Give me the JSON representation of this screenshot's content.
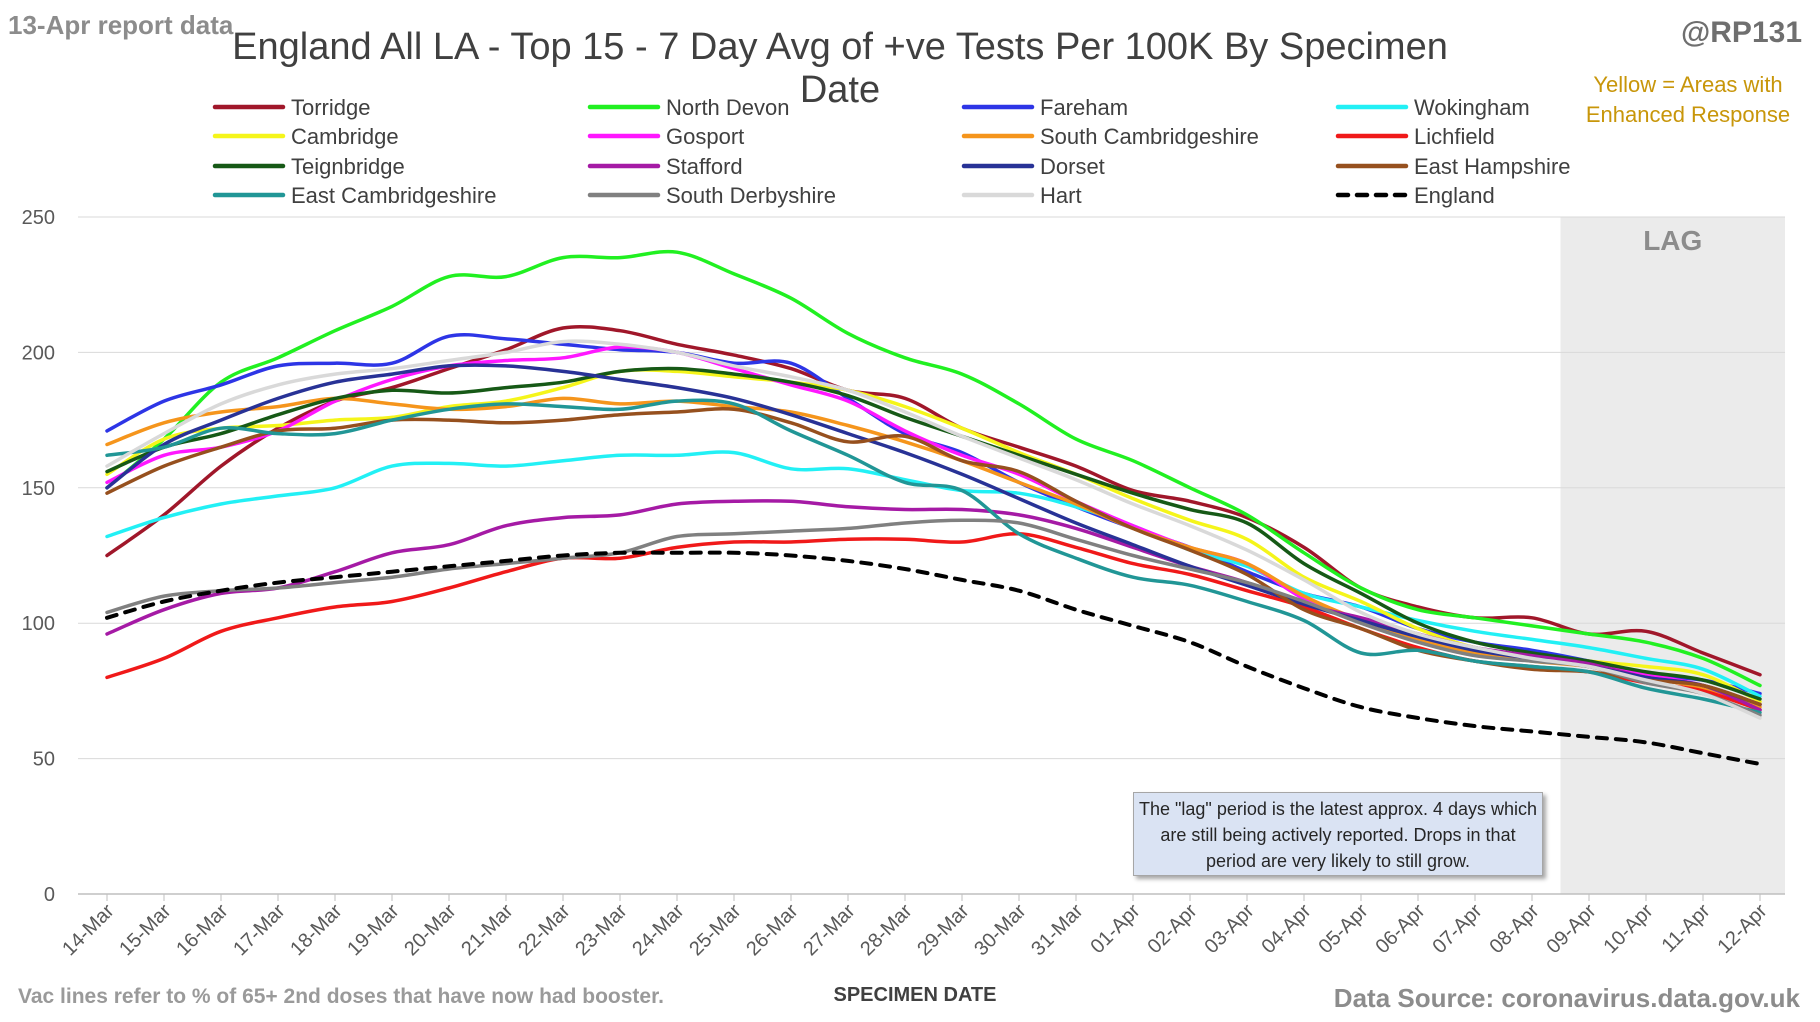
{
  "header": {
    "report_label": "13-Apr report data",
    "handle": "@RP131",
    "title": "England All LA - Top 15 - 7 Day Avg of +ve Tests Per 100K By Specimen Date",
    "yellow_note": "Yellow = Areas with Enhanced Response"
  },
  "footer": {
    "note": "Vac lines refer to % of 65+ 2nd doses that have now had booster.",
    "source": "Data Source: coronavirus.data.gov.uk"
  },
  "lag": {
    "label": "LAG",
    "note": "The \"lag\" period is the latest approx. 4 days which are still being actively reported. Drops in that period are very likely to still grow."
  },
  "chart_data": {
    "type": "line",
    "title": "England All LA - Top 15 - 7 Day Avg of +ve Tests Per 100K By Specimen Date",
    "xlabel": "SPECIMEN DATE",
    "ylabel": "",
    "ylim": [
      0,
      250
    ],
    "yticks": [
      0,
      50,
      100,
      150,
      200,
      250
    ],
    "grid": true,
    "legend_position": "top",
    "lag_region": [
      "09-Apr",
      "12-Apr"
    ],
    "x": [
      "14-Mar",
      "15-Mar",
      "16-Mar",
      "17-Mar",
      "18-Mar",
      "19-Mar",
      "20-Mar",
      "21-Mar",
      "22-Mar",
      "23-Mar",
      "24-Mar",
      "25-Mar",
      "26-Mar",
      "27-Mar",
      "28-Mar",
      "29-Mar",
      "30-Mar",
      "31-Mar",
      "01-Apr",
      "02-Apr",
      "03-Apr",
      "04-Apr",
      "05-Apr",
      "06-Apr",
      "07-Apr",
      "08-Apr",
      "09-Apr",
      "10-Apr",
      "11-Apr",
      "12-Apr"
    ],
    "series": [
      {
        "name": "Torridge",
        "color": "#a0172a",
        "dashed": false,
        "values": [
          125,
          140,
          158,
          172,
          182,
          187,
          194,
          201,
          209,
          208,
          203,
          199,
          194,
          186,
          183,
          172,
          165,
          158,
          149,
          145,
          139,
          128,
          113,
          106,
          102,
          102,
          96,
          97,
          89,
          81
        ]
      },
      {
        "name": "North Devon",
        "color": "#21f021",
        "dashed": false,
        "values": [
          150,
          168,
          189,
          198,
          208,
          217,
          228,
          228,
          235,
          235,
          237,
          229,
          220,
          207,
          198,
          192,
          181,
          168,
          160,
          150,
          140,
          126,
          113,
          105,
          102,
          99,
          96,
          93,
          87,
          77
        ]
      },
      {
        "name": "Fareham",
        "color": "#2d35e6",
        "dashed": false,
        "values": [
          171,
          182,
          188,
          195,
          196,
          196,
          206,
          205,
          203,
          201,
          200,
          196,
          196,
          183,
          170,
          163,
          152,
          143,
          135,
          128,
          119,
          111,
          106,
          98,
          93,
          90,
          86,
          81,
          79,
          74
        ]
      },
      {
        "name": "Wokingham",
        "color": "#22f0f5",
        "dashed": false,
        "values": [
          132,
          139,
          144,
          147,
          150,
          158,
          159,
          158,
          160,
          162,
          162,
          163,
          157,
          157,
          153,
          149,
          148,
          143,
          136,
          127,
          121,
          111,
          106,
          101,
          97,
          94,
          91,
          87,
          83,
          73
        ]
      },
      {
        "name": "Cambridge",
        "color": "#f5f51a",
        "dashed": false,
        "values": [
          155,
          168,
          172,
          173,
          175,
          176,
          180,
          182,
          187,
          193,
          193,
          191,
          189,
          186,
          180,
          172,
          163,
          155,
          146,
          138,
          131,
          117,
          108,
          98,
          91,
          88,
          86,
          84,
          81,
          71
        ]
      },
      {
        "name": "Gosport",
        "color": "#ff17ff",
        "dashed": false,
        "values": [
          152,
          162,
          165,
          171,
          182,
          190,
          195,
          197,
          198,
          202,
          200,
          194,
          188,
          182,
          171,
          162,
          155,
          145,
          136,
          128,
          122,
          109,
          101,
          94,
          89,
          87,
          85,
          81,
          77,
          70
        ]
      },
      {
        "name": "South Cambridgeshire",
        "color": "#f5951c",
        "dashed": false,
        "values": [
          166,
          174,
          178,
          180,
          183,
          181,
          179,
          180,
          183,
          181,
          182,
          180,
          178,
          173,
          167,
          160,
          152,
          144,
          135,
          128,
          122,
          110,
          101,
          94,
          89,
          86,
          84,
          80,
          76,
          69
        ]
      },
      {
        "name": "Lichfield",
        "color": "#f01919",
        "dashed": false,
        "values": [
          80,
          87,
          97,
          102,
          106,
          108,
          113,
          119,
          124,
          124,
          128,
          130,
          130,
          131,
          131,
          130,
          133,
          128,
          122,
          118,
          112,
          106,
          98,
          91,
          86,
          84,
          82,
          78,
          75,
          68
        ]
      },
      {
        "name": "Teignbridge",
        "color": "#165916",
        "dashed": false,
        "values": [
          156,
          165,
          170,
          177,
          183,
          186,
          185,
          187,
          189,
          193,
          194,
          192,
          189,
          184,
          176,
          169,
          162,
          155,
          148,
          142,
          137,
          122,
          111,
          100,
          93,
          89,
          86,
          82,
          79,
          72
        ]
      },
      {
        "name": "Stafford",
        "color": "#a51aa5",
        "dashed": false,
        "values": [
          96,
          105,
          111,
          113,
          119,
          126,
          129,
          136,
          139,
          140,
          144,
          145,
          145,
          143,
          142,
          142,
          140,
          135,
          128,
          121,
          115,
          107,
          102,
          96,
          91,
          88,
          85,
          80,
          77,
          68
        ]
      },
      {
        "name": "Dorset",
        "color": "#283296",
        "dashed": false,
        "values": [
          150,
          166,
          175,
          183,
          189,
          192,
          195,
          195,
          193,
          190,
          187,
          183,
          177,
          170,
          163,
          155,
          146,
          137,
          129,
          121,
          114,
          107,
          101,
          95,
          90,
          87,
          84,
          80,
          77,
          70
        ]
      },
      {
        "name": "East Hampshire",
        "color": "#96501e",
        "dashed": false,
        "values": [
          148,
          158,
          165,
          171,
          172,
          175,
          175,
          174,
          175,
          177,
          178,
          179,
          174,
          167,
          169,
          160,
          156,
          145,
          135,
          127,
          118,
          105,
          98,
          90,
          86,
          83,
          82,
          79,
          77,
          70
        ]
      },
      {
        "name": "East Cambridgeshire",
        "color": "#219696",
        "dashed": false,
        "values": [
          162,
          165,
          172,
          170,
          170,
          175,
          179,
          181,
          180,
          179,
          182,
          181,
          171,
          162,
          152,
          149,
          133,
          124,
          117,
          114,
          108,
          101,
          89,
          90,
          86,
          84,
          82,
          76,
          72,
          67
        ]
      },
      {
        "name": "South Derbyshire",
        "color": "#808080",
        "dashed": false,
        "values": [
          104,
          110,
          112,
          113,
          115,
          117,
          120,
          122,
          124,
          126,
          132,
          133,
          134,
          135,
          137,
          138,
          137,
          131,
          125,
          120,
          115,
          108,
          100,
          93,
          88,
          86,
          84,
          78,
          74,
          66
        ]
      },
      {
        "name": "Hart",
        "color": "#d9d9d9",
        "dashed": false,
        "values": [
          158,
          170,
          181,
          188,
          192,
          194,
          197,
          200,
          204,
          203,
          200,
          195,
          191,
          186,
          178,
          169,
          161,
          153,
          144,
          136,
          127,
          116,
          104,
          96,
          91,
          87,
          84,
          79,
          74,
          65
        ]
      },
      {
        "name": "England",
        "color": "#000000",
        "dashed": true,
        "values": [
          102,
          108,
          112,
          115,
          117,
          119,
          121,
          123,
          125,
          126,
          126,
          126,
          125,
          123,
          120,
          116,
          112,
          105,
          99,
          93,
          84,
          76,
          69,
          65,
          62,
          60,
          58,
          56,
          52,
          48
        ]
      }
    ]
  }
}
